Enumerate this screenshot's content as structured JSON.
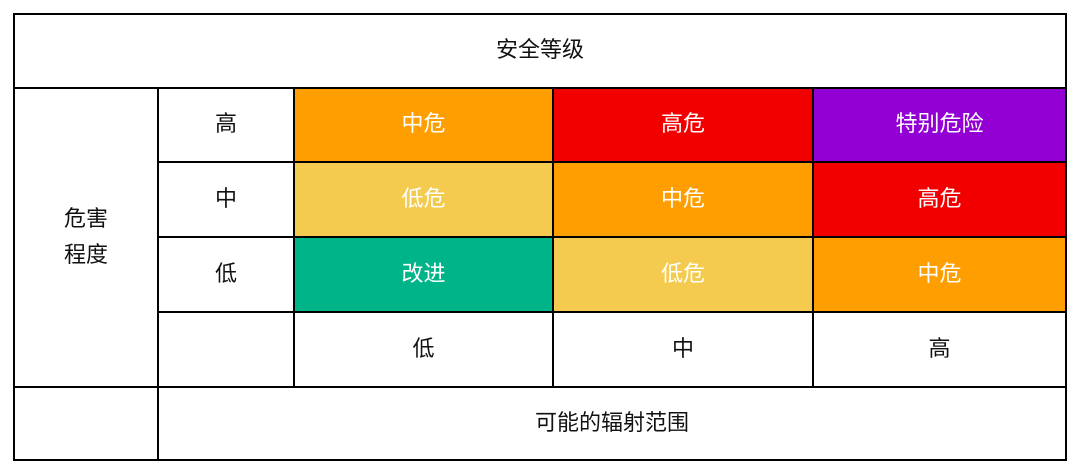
{
  "title": "安全等级",
  "row_axis_label": "危害\n程度",
  "column_axis_label": "可能的辐射范围",
  "row_labels": [
    "高",
    "中",
    "低"
  ],
  "column_labels": [
    "低",
    "中",
    "高"
  ],
  "matrix": [
    [
      {
        "text": "中危",
        "color": "#FF9E00"
      },
      {
        "text": "高危",
        "color": "#F20000"
      },
      {
        "text": "特别危险",
        "color": "#9300D3"
      }
    ],
    [
      {
        "text": "低危",
        "color": "#F4CB4E"
      },
      {
        "text": "中危",
        "color": "#FF9E00"
      },
      {
        "text": "高危",
        "color": "#F20000"
      }
    ],
    [
      {
        "text": "改进",
        "color": "#00B48A"
      },
      {
        "text": "低危",
        "color": "#F4CB4E"
      },
      {
        "text": "中危",
        "color": "#FF9E00"
      }
    ]
  ]
}
